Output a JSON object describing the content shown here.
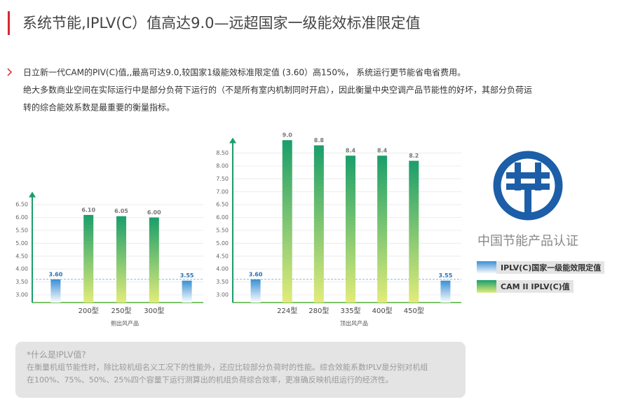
{
  "header": {
    "title": "系统节能,IPLV(C）值高达9.0—远超国家一级能效标准限定值"
  },
  "intro": [
    "日立新一代CAM的PIV(C)值,,最高可达9.0,较国家1级能效标准限定值 (3.60）高150%， 系统运行更节能省电省费用。",
    "绝大多数商业空间在实际运行中是部分负荷下运行的（不是所有室内机制同时开启），因此衡量中央空调产品节能性的好坏，其部分负荷运",
    "转的综合能效系数是最重要的衡量指标。"
  ],
  "chart_data": [
    {
      "type": "bar",
      "x_label": "侧出风产品",
      "categories": [
        null,
        "200型",
        "250型",
        "300型",
        null
      ],
      "series": [
        {
          "color": "#3a8fd4",
          "values": [
            3.6,
            null,
            null,
            null,
            3.55
          ],
          "value_labels": [
            "3.60",
            null,
            null,
            null,
            "3.55"
          ]
        },
        {
          "color": "#1a9e6a",
          "values": [
            null,
            6.1,
            6.05,
            6.0,
            null
          ],
          "value_labels": [
            null,
            "6.10",
            "6.05",
            "6.00",
            null
          ]
        }
      ],
      "ylim": [
        2.7,
        7.0
      ],
      "yticks": [
        {
          "value": 3,
          "label": "3.00"
        },
        {
          "value": 3.5,
          "label": "3.50"
        },
        {
          "value": 4,
          "label": "4.00"
        },
        {
          "value": 4.5,
          "label": "4.50"
        },
        {
          "value": 5,
          "label": "5.00"
        },
        {
          "value": 5.5,
          "label": "5.50"
        },
        {
          "value": 6,
          "label": "6.00"
        },
        {
          "value": 6.5,
          "label": "6.50"
        }
      ],
      "grid": true
    },
    {
      "type": "bar",
      "x_label": "顶出风产品",
      "categories": [
        null,
        "224型",
        "280型",
        "335型",
        "400型",
        "450型",
        null
      ],
      "series": [
        {
          "name": "IPLV(C)国家一级能效限定值",
          "color": "#3a8fd4",
          "values": [
            3.6,
            null,
            null,
            null,
            null,
            null,
            3.55
          ],
          "value_labels": [
            "3.60",
            null,
            null,
            null,
            null,
            null,
            "3.55"
          ]
        },
        {
          "name": "CAM II IPLV(C)值",
          "color": "#1a9e6a",
          "values": [
            null,
            9.0,
            8.8,
            8.4,
            8.4,
            8.2,
            null
          ],
          "value_labels": [
            null,
            "9.0",
            "8.8",
            "8.4",
            "8.4",
            "8.2",
            null
          ]
        }
      ],
      "ylim": [
        2.7,
        9.1
      ],
      "yticks": [
        {
          "value": 3,
          "label": "3.00"
        },
        {
          "value": 3.5,
          "label": "3.50"
        },
        {
          "value": 4,
          "label": "4.00"
        },
        {
          "value": 4.5,
          "label": "4.50"
        },
        {
          "value": 5,
          "label": "5.00"
        },
        {
          "value": 5.5,
          "label": "5.50"
        },
        {
          "value": 6,
          "label": "6.00"
        },
        {
          "value": 6.5,
          "label": "6.50"
        },
        {
          "value": 7,
          "label": "7.00"
        },
        {
          "value": 7.5,
          "label": "7.50"
        },
        {
          "value": 8,
          "label": "8.00"
        },
        {
          "value": 8.5,
          "label": "8.50"
        }
      ],
      "grid": true
    }
  ],
  "logo": {
    "caption": "中国节能产品认证"
  },
  "note": {
    "title": "*什么是IPLV值?",
    "lines": [
      "在衡量机组节能性时，除比较机组名义工况下的性能外，还应比较部分负荷时的性能。综合效能系数IPLV是分别对机组",
      "在100%、75%、50%、25%四个容量下运行测算出的机组负荷综合效率，更准确反映机组运行的经济性。"
    ]
  }
}
